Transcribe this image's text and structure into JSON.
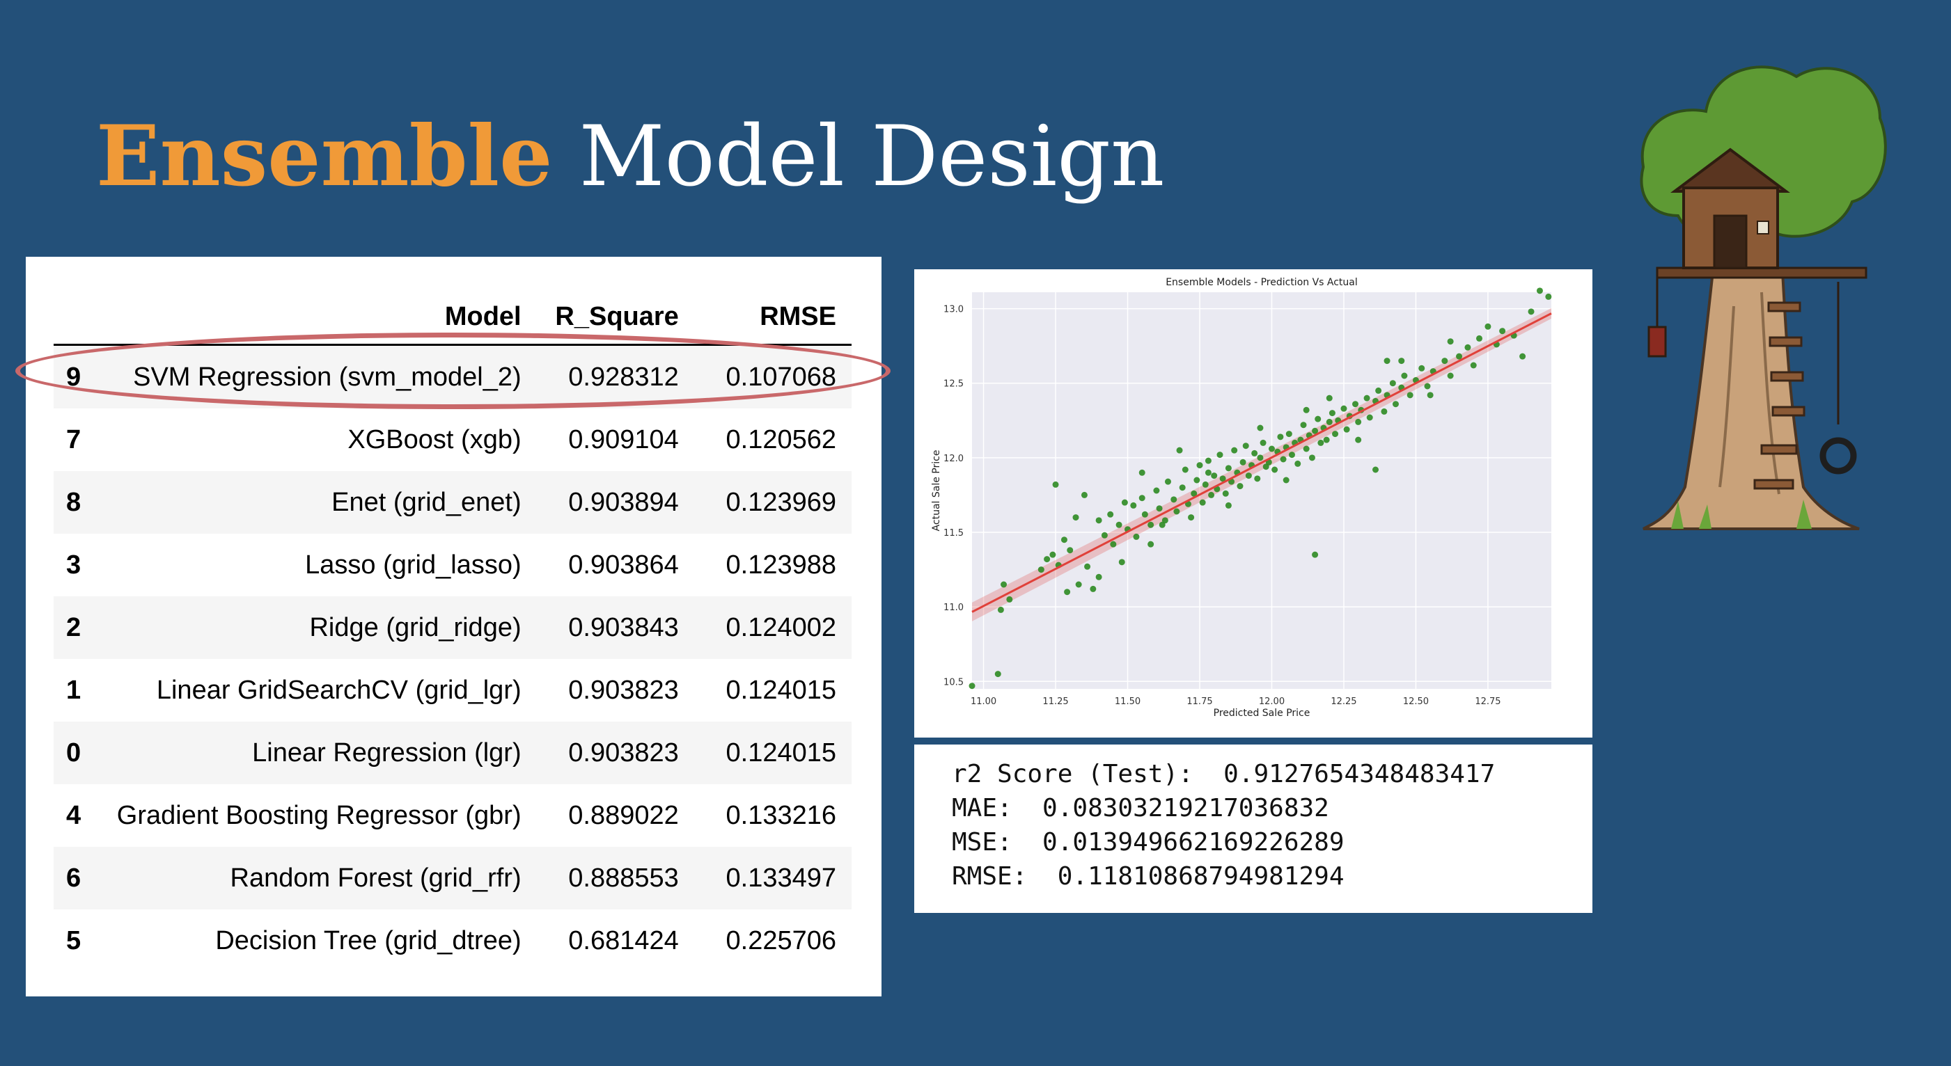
{
  "slide": {
    "title_accent": "Ensemble",
    "title_rest": "Model Design"
  },
  "table": {
    "headers": {
      "index": "",
      "model": "Model",
      "r_square": "R_Square",
      "rmse": "RMSE"
    },
    "rows": [
      {
        "index": "9",
        "model": "SVM Regression (svm_model_2)",
        "r_square": "0.928312",
        "rmse": "0.107068"
      },
      {
        "index": "7",
        "model": "XGBoost (xgb)",
        "r_square": "0.909104",
        "rmse": "0.120562"
      },
      {
        "index": "8",
        "model": "Enet (grid_enet)",
        "r_square": "0.903894",
        "rmse": "0.123969"
      },
      {
        "index": "3",
        "model": "Lasso (grid_lasso)",
        "r_square": "0.903864",
        "rmse": "0.123988"
      },
      {
        "index": "2",
        "model": "Ridge (grid_ridge)",
        "r_square": "0.903843",
        "rmse": "0.124002"
      },
      {
        "index": "1",
        "model": "Linear GridSearchCV (grid_lgr)",
        "r_square": "0.903823",
        "rmse": "0.124015"
      },
      {
        "index": "0",
        "model": "Linear Regression (lgr)",
        "r_square": "0.903823",
        "rmse": "0.124015"
      },
      {
        "index": "4",
        "model": "Gradient Boosting Regressor (gbr)",
        "r_square": "0.889022",
        "rmse": "0.133216"
      },
      {
        "index": "6",
        "model": "Random Forest (grid_rfr)",
        "r_square": "0.888553",
        "rmse": "0.133497"
      },
      {
        "index": "5",
        "model": "Decision Tree (grid_dtree)",
        "r_square": "0.681424",
        "rmse": "0.225706"
      }
    ],
    "highlight_color": "#C9686A"
  },
  "metrics": {
    "lines": [
      "r2 Score (Test):  0.9127654348483417",
      "MAE:  0.08303219217036832",
      "MSE:  0.013949662169226289",
      "RMSE:  0.11810868794981294"
    ]
  },
  "chart_data": {
    "type": "scatter",
    "title": "Ensemble Models - Prediction Vs Actual",
    "xlabel": "Predicted Sale Price",
    "ylabel": "Actual Sale Price",
    "xlim": [
      10.96,
      12.97
    ],
    "ylim": [
      10.45,
      13.11
    ],
    "xticks": [
      "11.00",
      "11.25",
      "11.50",
      "11.75",
      "12.00",
      "12.25",
      "12.50",
      "12.75"
    ],
    "yticks": [
      "10.5",
      "11.0",
      "11.5",
      "12.0",
      "12.5",
      "13.0"
    ],
    "grid": true,
    "point_color": "#2E8B22",
    "line_color": "#E0413A",
    "regression_line": {
      "slope": 0.996,
      "intercept": 0.05
    },
    "points": [
      [
        10.96,
        10.47
      ],
      [
        11.05,
        10.55
      ],
      [
        11.07,
        11.15
      ],
      [
        11.09,
        11.05
      ],
      [
        11.06,
        10.98
      ],
      [
        11.2,
        11.25
      ],
      [
        11.24,
        11.35
      ],
      [
        11.22,
        11.32
      ],
      [
        11.26,
        11.28
      ],
      [
        11.28,
        11.45
      ],
      [
        11.25,
        11.82
      ],
      [
        11.29,
        11.1
      ],
      [
        11.3,
        11.38
      ],
      [
        11.33,
        11.15
      ],
      [
        11.32,
        11.6
      ],
      [
        11.36,
        11.27
      ],
      [
        11.38,
        11.12
      ],
      [
        11.4,
        11.58
      ],
      [
        11.42,
        11.48
      ],
      [
        11.44,
        11.62
      ],
      [
        11.45,
        11.42
      ],
      [
        11.47,
        11.55
      ],
      [
        11.49,
        11.7
      ],
      [
        11.5,
        11.52
      ],
      [
        11.52,
        11.68
      ],
      [
        11.53,
        11.47
      ],
      [
        11.55,
        11.73
      ],
      [
        11.56,
        11.62
      ],
      [
        11.58,
        11.55
      ],
      [
        11.6,
        11.78
      ],
      [
        11.61,
        11.66
      ],
      [
        11.63,
        11.58
      ],
      [
        11.64,
        11.84
      ],
      [
        11.66,
        11.72
      ],
      [
        11.67,
        11.64
      ],
      [
        11.69,
        11.8
      ],
      [
        11.7,
        11.92
      ],
      [
        11.71,
        11.69
      ],
      [
        11.73,
        11.76
      ],
      [
        11.74,
        11.85
      ],
      [
        11.75,
        11.95
      ],
      [
        11.76,
        11.7
      ],
      [
        11.77,
        11.82
      ],
      [
        11.78,
        11.98
      ],
      [
        11.79,
        11.75
      ],
      [
        11.8,
        11.88
      ],
      [
        11.81,
        11.79
      ],
      [
        11.82,
        12.02
      ],
      [
        11.83,
        11.86
      ],
      [
        11.84,
        11.76
      ],
      [
        11.85,
        11.93
      ],
      [
        11.86,
        11.84
      ],
      [
        11.87,
        12.05
      ],
      [
        11.88,
        11.9
      ],
      [
        11.89,
        11.81
      ],
      [
        11.9,
        11.97
      ],
      [
        11.91,
        12.08
      ],
      [
        11.92,
        11.88
      ],
      [
        11.93,
        11.95
      ],
      [
        11.94,
        12.03
      ],
      [
        11.95,
        11.86
      ],
      [
        11.96,
        12.0
      ],
      [
        11.97,
        12.1
      ],
      [
        11.98,
        11.94
      ],
      [
        11.99,
        11.97
      ],
      [
        12.0,
        12.06
      ],
      [
        12.01,
        11.92
      ],
      [
        12.02,
        12.04
      ],
      [
        12.03,
        12.14
      ],
      [
        12.04,
        11.99
      ],
      [
        12.05,
        12.07
      ],
      [
        12.06,
        12.16
      ],
      [
        12.07,
        12.02
      ],
      [
        12.08,
        12.1
      ],
      [
        12.09,
        11.96
      ],
      [
        12.1,
        12.12
      ],
      [
        12.11,
        12.22
      ],
      [
        12.12,
        12.06
      ],
      [
        12.13,
        12.15
      ],
      [
        12.14,
        12.0
      ],
      [
        12.15,
        12.18
      ],
      [
        12.16,
        12.26
      ],
      [
        12.17,
        12.1
      ],
      [
        12.18,
        12.2
      ],
      [
        12.19,
        12.12
      ],
      [
        12.2,
        12.24
      ],
      [
        12.21,
        12.3
      ],
      [
        12.22,
        12.16
      ],
      [
        12.23,
        12.25
      ],
      [
        12.25,
        12.33
      ],
      [
        12.26,
        12.19
      ],
      [
        12.27,
        12.28
      ],
      [
        12.29,
        12.36
      ],
      [
        12.3,
        12.24
      ],
      [
        12.31,
        12.32
      ],
      [
        12.33,
        12.4
      ],
      [
        12.34,
        12.27
      ],
      [
        12.36,
        12.38
      ],
      [
        12.37,
        12.45
      ],
      [
        12.39,
        12.31
      ],
      [
        12.4,
        12.42
      ],
      [
        12.42,
        12.5
      ],
      [
        12.43,
        12.36
      ],
      [
        12.45,
        12.47
      ],
      [
        12.46,
        12.55
      ],
      [
        12.48,
        12.42
      ],
      [
        12.5,
        12.52
      ],
      [
        12.52,
        12.6
      ],
      [
        12.54,
        12.48
      ],
      [
        12.56,
        12.58
      ],
      [
        12.6,
        12.65
      ],
      [
        12.62,
        12.55
      ],
      [
        12.65,
        12.68
      ],
      [
        12.68,
        12.74
      ],
      [
        12.7,
        12.62
      ],
      [
        12.72,
        12.8
      ],
      [
        12.75,
        12.88
      ],
      [
        12.78,
        12.76
      ],
      [
        12.8,
        12.85
      ],
      [
        12.84,
        12.82
      ],
      [
        12.87,
        12.68
      ],
      [
        12.9,
        12.98
      ],
      [
        12.93,
        13.12
      ],
      [
        12.96,
        13.08
      ],
      [
        12.4,
        12.65
      ],
      [
        12.36,
        11.92
      ],
      [
        12.15,
        11.35
      ],
      [
        11.62,
        11.55
      ],
      [
        11.58,
        11.42
      ],
      [
        11.48,
        11.3
      ],
      [
        11.4,
        11.2
      ],
      [
        11.35,
        11.75
      ],
      [
        11.55,
        11.9
      ],
      [
        11.68,
        12.05
      ],
      [
        11.72,
        11.6
      ],
      [
        11.96,
        12.2
      ],
      [
        12.05,
        11.85
      ],
      [
        12.2,
        12.4
      ],
      [
        12.3,
        12.12
      ],
      [
        12.45,
        12.65
      ],
      [
        12.55,
        12.42
      ],
      [
        12.62,
        12.78
      ],
      [
        11.85,
        11.68
      ],
      [
        11.78,
        11.9
      ],
      [
        12.12,
        12.32
      ]
    ]
  }
}
